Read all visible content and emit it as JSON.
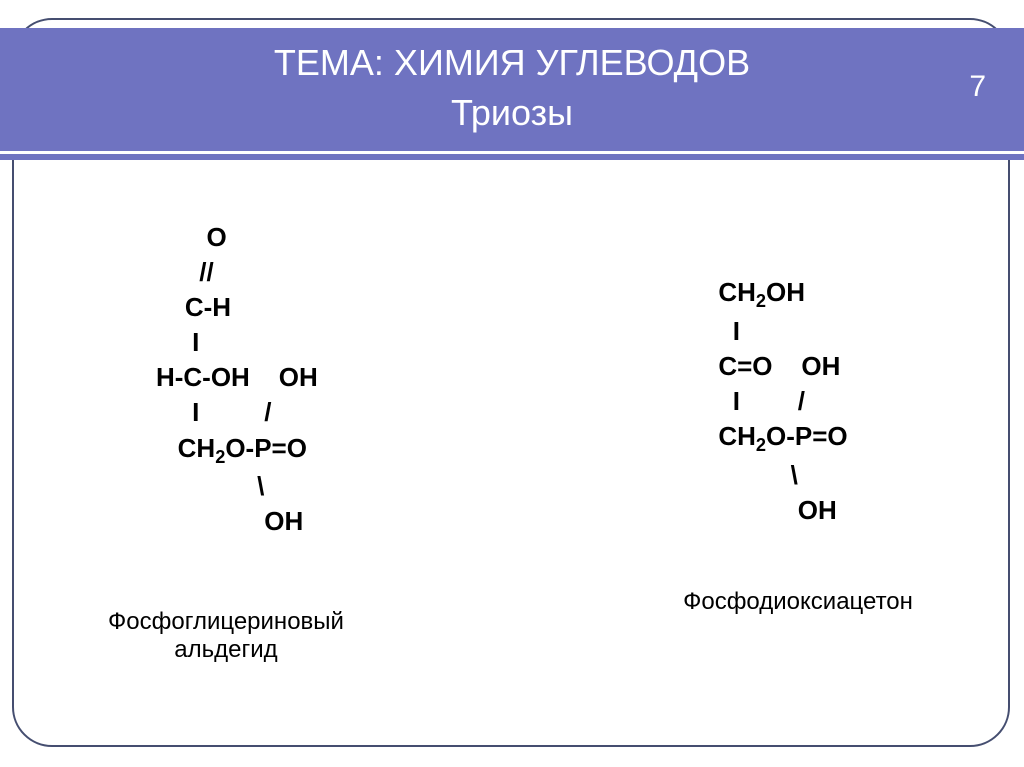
{
  "header": {
    "title": "ТЕМА: ХИМИЯ УГЛЕВОДОВ",
    "subtitle": "Триозы",
    "page_number": "7",
    "band_color": "#6f73c1",
    "border_color": "#454e70",
    "text_color": "#ffffff"
  },
  "structures": {
    "left": {
      "line1": "          O",
      "line2": "         //",
      "line3": "       C-H",
      "line4": "        I",
      "line5": "   H-C-OH    OH",
      "line6": "        I         /",
      "line7_a": "      CH",
      "line7_b": "O-P=O",
      "line8": "                 \\",
      "line9": "                  OH",
      "caption": "Фосфоглицериновый\nальдегид"
    },
    "right": {
      "line1_a": "CH",
      "line1_b": "OH",
      "line2": "  I",
      "line3": "C=O    OH",
      "line4": "  I        /",
      "line5_a": "CH",
      "line5_b": "O-P=O",
      "line6": "          \\",
      "line7": "           OH",
      "caption": "Фосфодиоксиацетон"
    }
  },
  "style": {
    "formula_fontsize": 26,
    "formula_weight": "bold",
    "caption_fontsize": 24,
    "title_fontsize": 36,
    "background": "#ffffff",
    "text_color": "#000000"
  }
}
